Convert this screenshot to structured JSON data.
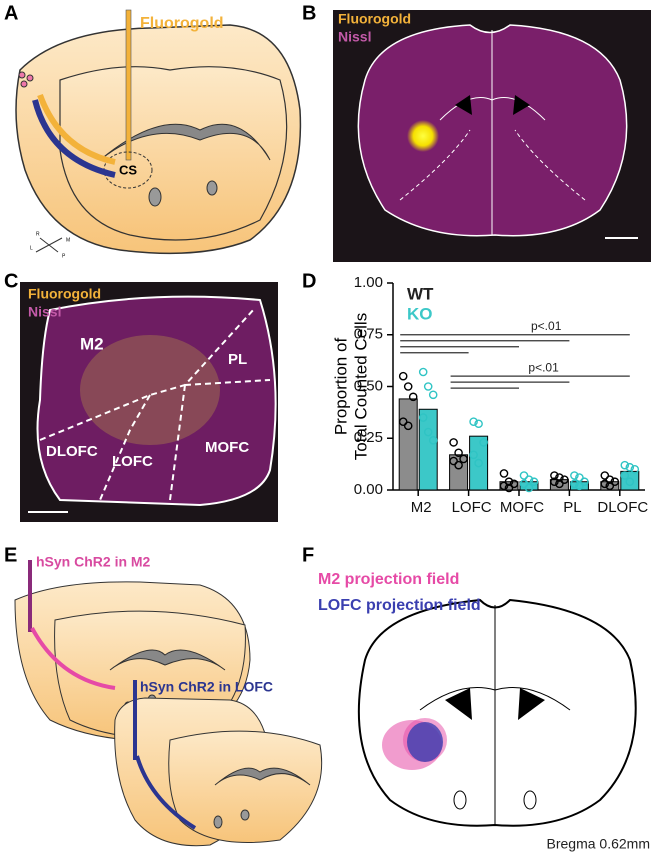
{
  "panels": {
    "A": {
      "label": "A",
      "tracer": "Fluorogold",
      "site": "CS",
      "compass": [
        "R",
        "M",
        "L",
        "P"
      ]
    },
    "B": {
      "label": "B",
      "stain1": "Fluorogold",
      "stain2": "Nissl"
    },
    "C": {
      "label": "C",
      "stain1": "Fluorogold",
      "stain2": "Nissl",
      "regions": [
        "M2",
        "PL",
        "DLOFC",
        "LOFC",
        "MOFC"
      ]
    },
    "D": {
      "label": "D"
    },
    "E": {
      "label": "E",
      "injection1": "hSyn ChR2 in M2",
      "injection2": "hSyn ChR2 in LOFC"
    },
    "F": {
      "label": "F",
      "legend": [
        "M2 projection field",
        "LOFC projection field"
      ],
      "coordinate": "Bregma 0.62mm"
    }
  },
  "chart_data": {
    "type": "bar",
    "ylabel": [
      "Proportion of",
      "Total Counted Cells"
    ],
    "categories": [
      "M2",
      "LOFC",
      "MOFC",
      "PL",
      "DLOFC"
    ],
    "series": [
      {
        "name": "WT",
        "color": "#8c8c8c",
        "point_color": "#000000",
        "values": [
          0.44,
          0.17,
          0.04,
          0.05,
          0.04
        ],
        "points": [
          [
            0.55,
            0.5,
            0.45,
            0.33,
            0.31
          ],
          [
            0.23,
            0.18,
            0.15,
            0.14,
            0.12
          ],
          [
            0.08,
            0.04,
            0.03,
            0.02,
            0.01
          ],
          [
            0.07,
            0.06,
            0.05,
            0.04,
            0.03
          ],
          [
            0.07,
            0.05,
            0.04,
            0.03,
            0.02
          ]
        ]
      },
      {
        "name": "KO",
        "color": "#3cc8c8",
        "point_color": "#2fc4c4",
        "values": [
          0.39,
          0.26,
          0.04,
          0.04,
          0.09
        ],
        "points": [
          [
            0.57,
            0.5,
            0.46,
            0.35,
            0.28,
            0.24
          ],
          [
            0.33,
            0.32,
            0.23,
            0.17,
            0.13
          ],
          [
            0.07,
            0.05,
            0.04,
            0.03,
            0.01
          ],
          [
            0.07,
            0.06,
            0.04,
            0.03,
            0.02
          ],
          [
            0.12,
            0.11,
            0.1,
            0.07,
            0.04
          ]
        ]
      }
    ],
    "ylim": [
      0,
      1
    ],
    "yticks": [
      {
        "value": 0,
        "label": "0.00"
      },
      {
        "value": 0.25,
        "label": "0.25"
      },
      {
        "value": 0.5,
        "label": "0.50"
      },
      {
        "value": 0.75,
        "label": "0.75"
      },
      {
        "value": 1,
        "label": "1.00"
      }
    ],
    "legend": "upper left",
    "annotations": [
      "p<.01",
      "p<.01"
    ]
  }
}
